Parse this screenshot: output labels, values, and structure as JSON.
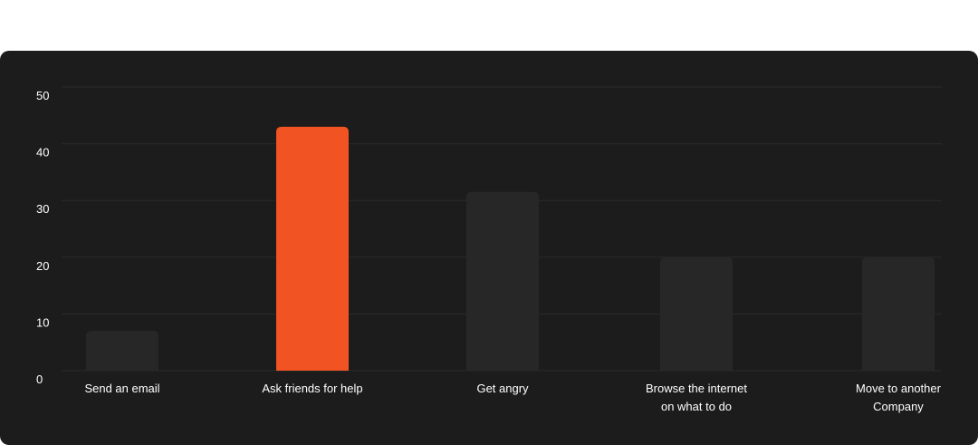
{
  "chart_data": {
    "type": "bar",
    "categories": [
      [
        "Send an email"
      ],
      [
        "Ask friends for help"
      ],
      [
        "Get angry"
      ],
      [
        "Browse the internet",
        "on what to do"
      ],
      [
        "Move to another",
        "Company"
      ]
    ],
    "values": [
      7,
      43,
      31.5,
      20,
      20
    ],
    "highlight_index": 1,
    "ylim": [
      0,
      50
    ],
    "yticks": [
      0,
      10,
      20,
      30,
      40,
      50
    ],
    "grid": true,
    "colors": {
      "background": "#1c1c1c",
      "bar": "#272727",
      "highlight": "#f25322",
      "grid": "#2a2a2a",
      "text": "#ffffff"
    }
  }
}
